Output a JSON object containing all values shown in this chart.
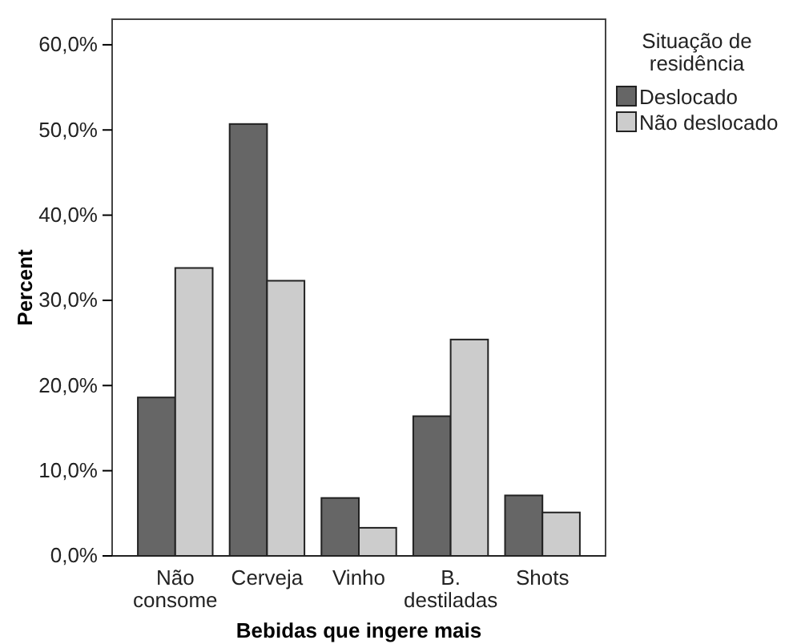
{
  "chart_data": {
    "type": "bar",
    "xlabel": "Bebidas que ingere mais",
    "ylabel": "Percent",
    "legend_title": "Situação de residência",
    "legend": "top right",
    "grid": false,
    "categories": [
      "Não consome",
      "Cerveja",
      "Vinho",
      "B. destiladas",
      "Shots"
    ],
    "series": [
      {
        "name": "Deslocado",
        "color": "#666666",
        "values": [
          18.6,
          50.7,
          6.8,
          16.4,
          7.1
        ]
      },
      {
        "name": "Não deslocado",
        "color": "#cccccc",
        "values": [
          33.8,
          32.3,
          3.3,
          25.4,
          5.1
        ]
      }
    ],
    "ylim": [
      0,
      63
    ],
    "yticks": [
      {
        "value": 0,
        "label": "0,0%"
      },
      {
        "value": 10,
        "label": "10,0%"
      },
      {
        "value": 20,
        "label": "20,0%"
      },
      {
        "value": 30,
        "label": "30,0%"
      },
      {
        "value": 40,
        "label": "40,0%"
      },
      {
        "value": 50,
        "label": "50,0%"
      },
      {
        "value": 60,
        "label": "60,0%"
      }
    ]
  }
}
